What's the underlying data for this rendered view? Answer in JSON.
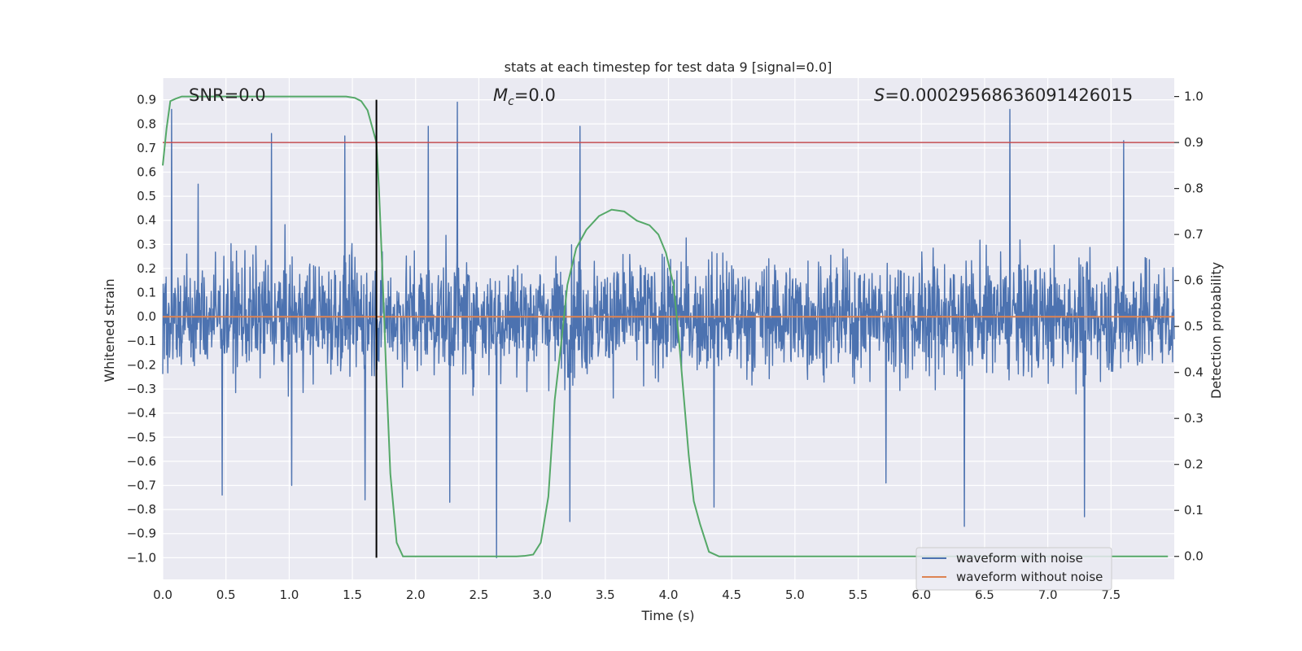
{
  "chart_data": {
    "type": "line",
    "title": "stats at each timestep for test data 9 [signal=0.0]",
    "xlabel": "Time (s)",
    "ylabel": "Whitened strain",
    "y2label": "Detection probability",
    "xlim": [
      0.0,
      8.0
    ],
    "ylim": [
      -1.09,
      0.99
    ],
    "y2lim": [
      -0.05,
      1.04
    ],
    "x_ticks": [
      "0.0",
      "0.5",
      "1.0",
      "1.5",
      "2.0",
      "2.5",
      "3.0",
      "3.5",
      "4.0",
      "4.5",
      "5.0",
      "5.5",
      "6.0",
      "6.5",
      "7.0",
      "7.5"
    ],
    "y_ticks": [
      "0.9",
      "0.8",
      "0.7",
      "0.6",
      "0.5",
      "0.4",
      "0.3",
      "0.2",
      "0.1",
      "0.0",
      "−0.1",
      "−0.2",
      "−0.3",
      "−0.4",
      "−0.5",
      "−0.6",
      "−0.7",
      "−0.8",
      "−0.9",
      "−1.0"
    ],
    "y2_ticks": [
      "1.0",
      "0.9",
      "0.8",
      "0.7",
      "0.6",
      "0.5",
      "0.4",
      "0.3",
      "0.2",
      "0.1",
      "0.0"
    ],
    "annotations": {
      "snr": "SNR=0.0",
      "mc_symbol": "M",
      "mc_sub": "c",
      "mc_value": "=0.0",
      "s_symbol": "S",
      "s_value": "=0.00029568636091426015"
    },
    "threshold": 0.9,
    "trigger_time": 1.69,
    "trigger_line_range": [
      -1.0,
      0.9
    ],
    "series": [
      {
        "name": "waveform with noise",
        "color": "#4c72b0",
        "axis": "left",
        "description": "noisy whitened strain, mostly within ±0.5 with spikes to ~0.9 and ~-1.0",
        "noise_seed": 9,
        "typical_amplitude": 0.4,
        "spikes": [
          {
            "t": 0.07,
            "v": 0.86
          },
          {
            "t": 0.86,
            "v": 0.76
          },
          {
            "t": 1.44,
            "v": 0.75
          },
          {
            "t": 2.1,
            "v": 0.79
          },
          {
            "t": 2.33,
            "v": 0.89
          },
          {
            "t": 3.3,
            "v": 0.79
          },
          {
            "t": 6.7,
            "v": 0.86
          },
          {
            "t": 7.6,
            "v": 0.73
          },
          {
            "t": 0.28,
            "v": 0.55
          },
          {
            "t": 1.6,
            "v": -0.76
          },
          {
            "t": 2.64,
            "v": -1.0
          },
          {
            "t": 1.02,
            "v": -0.7
          },
          {
            "t": 0.47,
            "v": -0.74
          },
          {
            "t": 6.34,
            "v": -0.87
          },
          {
            "t": 7.29,
            "v": -0.83
          },
          {
            "t": 3.22,
            "v": -0.85
          },
          {
            "t": 4.36,
            "v": -0.79
          },
          {
            "t": 2.27,
            "v": -0.77
          },
          {
            "t": 5.72,
            "v": -0.69
          }
        ]
      },
      {
        "name": "waveform without noise",
        "color": "#dd8452",
        "axis": "left",
        "x": [
          0.0,
          8.0
        ],
        "y": [
          0.0,
          0.0
        ]
      },
      {
        "name": "detection probability",
        "color": "#55a868",
        "axis": "right",
        "x": [
          0.0,
          0.03,
          0.06,
          0.1,
          0.15,
          0.3,
          0.6,
          1.0,
          1.3,
          1.45,
          1.52,
          1.57,
          1.62,
          1.66,
          1.69,
          1.71,
          1.74,
          1.77,
          1.8,
          1.85,
          1.9,
          1.95,
          2.0,
          2.5,
          2.7,
          2.8,
          2.86,
          2.93,
          2.99,
          3.05,
          3.1,
          3.15,
          3.2,
          3.27,
          3.35,
          3.45,
          3.55,
          3.65,
          3.75,
          3.85,
          3.92,
          3.98,
          4.04,
          4.08,
          4.12,
          4.16,
          4.2,
          4.25,
          4.32,
          4.4,
          7.95
        ],
        "y": [
          0.85,
          0.93,
          0.99,
          0.995,
          1.0,
          1.0,
          1.0,
          1.0,
          1.0,
          1.0,
          0.997,
          0.99,
          0.97,
          0.93,
          0.9,
          0.8,
          0.6,
          0.38,
          0.18,
          0.03,
          0.0,
          0.0,
          0.0,
          0.0,
          0.0,
          0.0,
          0.001,
          0.004,
          0.03,
          0.13,
          0.34,
          0.46,
          0.59,
          0.67,
          0.71,
          0.74,
          0.754,
          0.75,
          0.73,
          0.72,
          0.7,
          0.66,
          0.59,
          0.48,
          0.35,
          0.22,
          0.12,
          0.07,
          0.01,
          0.0,
          0.0
        ]
      }
    ],
    "threshold_series": {
      "name": "threshold",
      "color": "#c44e52"
    },
    "trigger_series": {
      "name": "trigger",
      "color": "#000000"
    },
    "legend": {
      "placement": "lower-right",
      "entries": [
        "waveform with noise",
        "waveform without noise"
      ]
    }
  }
}
